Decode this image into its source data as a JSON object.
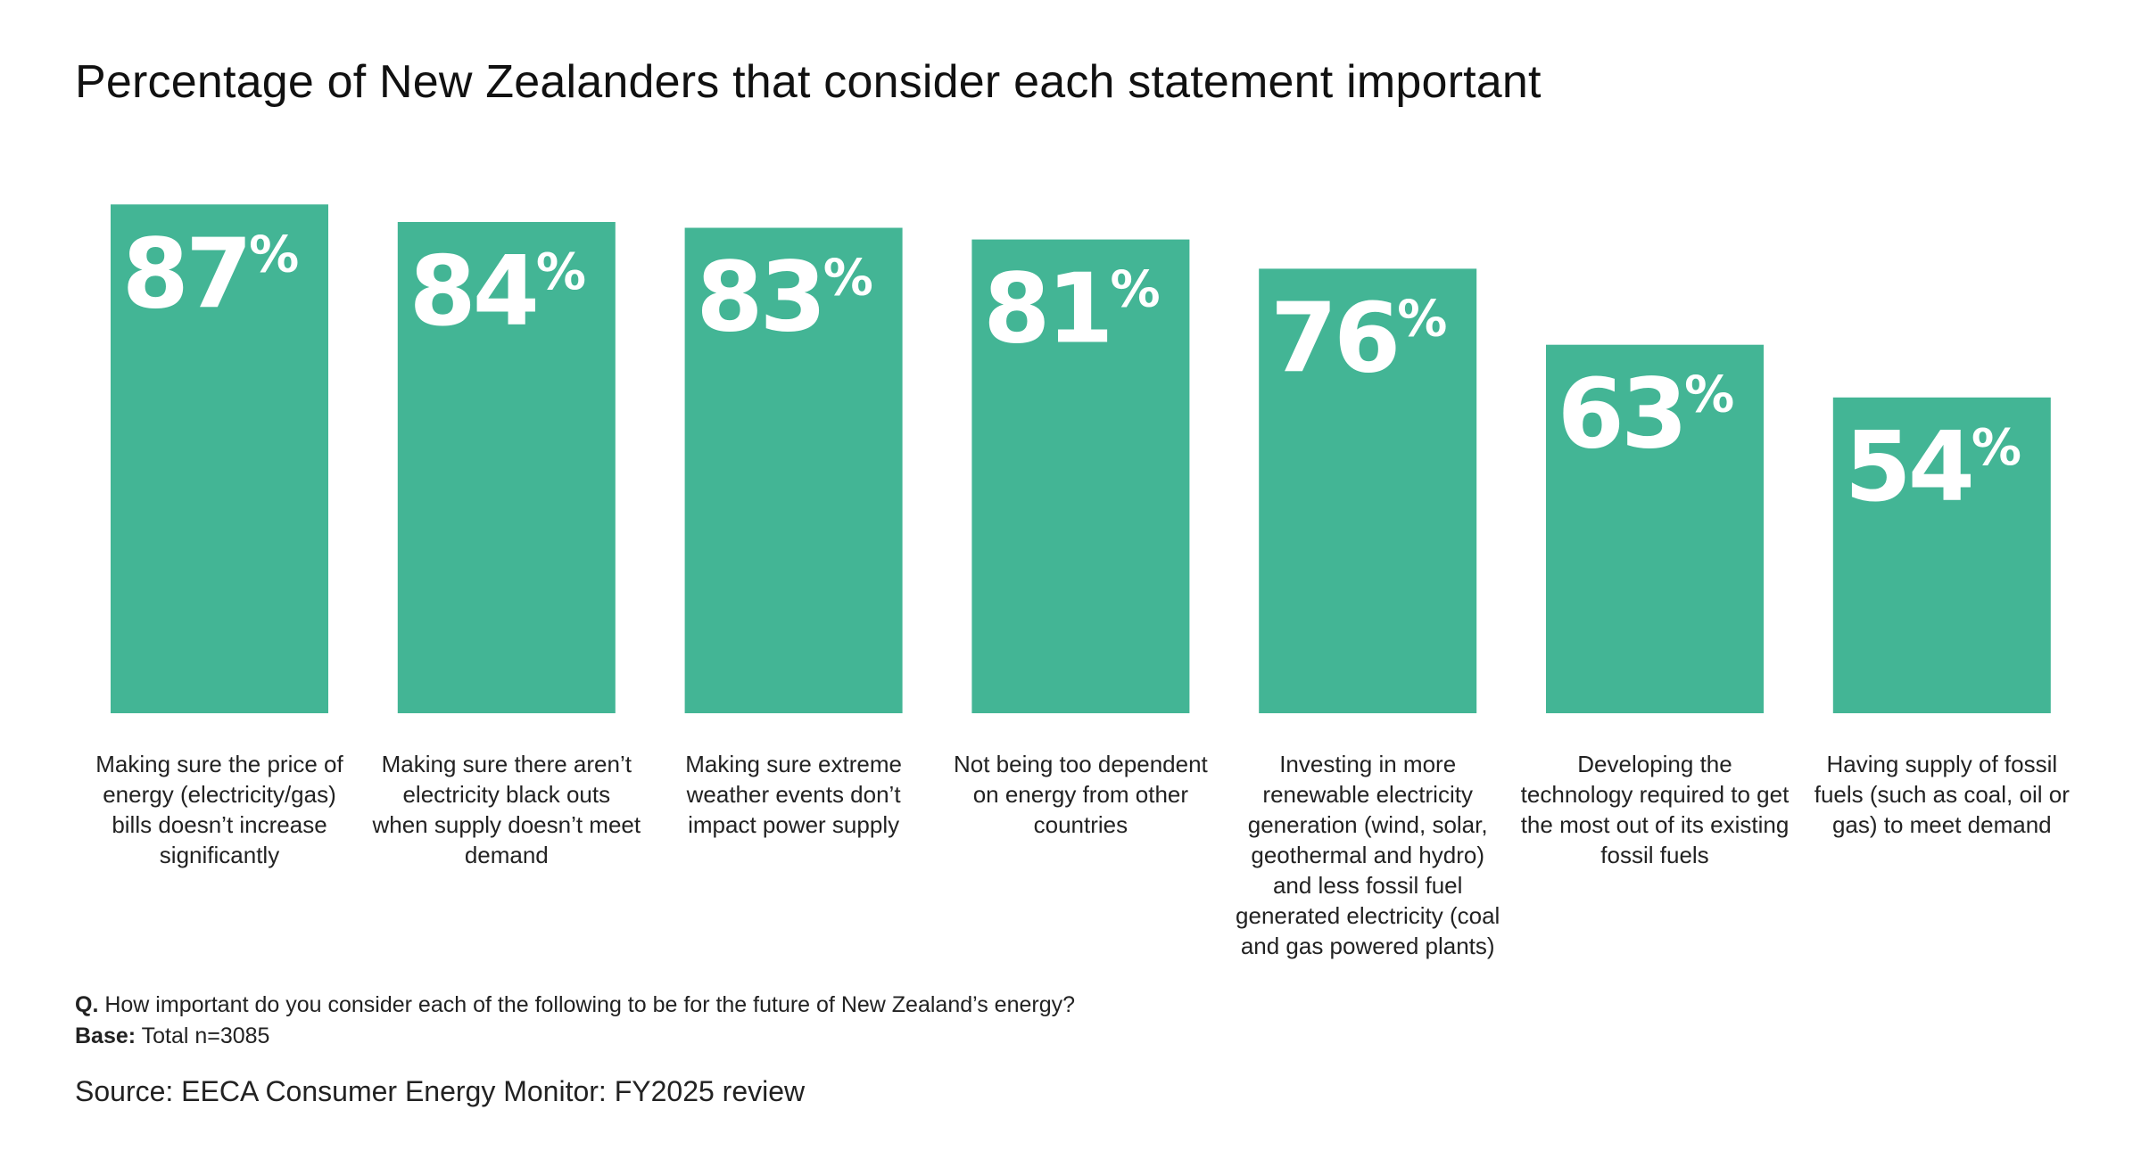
{
  "chart_data": {
    "type": "bar",
    "title": "Percentage of New Zealanders that consider each statement important",
    "categories": [
      "Making sure the price of energy (electricity/gas) bills doesn’t increase significantly",
      "Making sure there aren’t electricity black outs when supply doesn’t meet demand",
      "Making sure extreme weather events don’t impact power supply",
      "Not being too dependent on energy from other countries",
      "Investing in more renewable electricity generation (wind, solar, geothermal and hydro) and less fossil fuel generated electricity (coal and gas powered plants)",
      "Developing the technology required to get the most out of its existing fossil fuels",
      "Having supply of fossil fuels (such as coal, oil or gas) to meet demand"
    ],
    "category_lines": [
      [
        "Making sure the price of",
        "energy (electricity/gas)",
        "bills doesn’t increase",
        "significantly"
      ],
      [
        "Making sure there aren’t",
        "electricity black outs",
        "when supply doesn’t meet",
        "demand"
      ],
      [
        "Making sure extreme",
        "weather events don’t",
        "impact power supply"
      ],
      [
        "Not being too dependent",
        "on energy from other",
        "countries"
      ],
      [
        "Investing in more",
        "renewable electricity",
        "generation (wind, solar,",
        "geothermal and hydro)",
        "and less fossil fuel",
        "generated electricity (coal",
        "and gas powered plants)"
      ],
      [
        "Developing the",
        "technology required to get",
        "the most out of its existing",
        "fossil fuels"
      ],
      [
        "Having supply of fossil",
        "fuels (such as coal, oil or",
        "gas) to meet demand"
      ]
    ],
    "values": [
      87,
      84,
      83,
      81,
      76,
      63,
      54
    ],
    "value_suffix": "%",
    "ylim": [
      0,
      100
    ],
    "grid": false,
    "legend": "none",
    "bar_color": "#43b595",
    "value_label_color": "#ffffff"
  },
  "footnotes": {
    "question_prefix": "Q.",
    "question": " How important do you consider each of the following to be for the future of New Zealand’s energy?",
    "base_prefix": "Base:",
    "base": " Total n=3085"
  },
  "source": "Source: EECA Consumer Energy Monitor: FY2025 review"
}
